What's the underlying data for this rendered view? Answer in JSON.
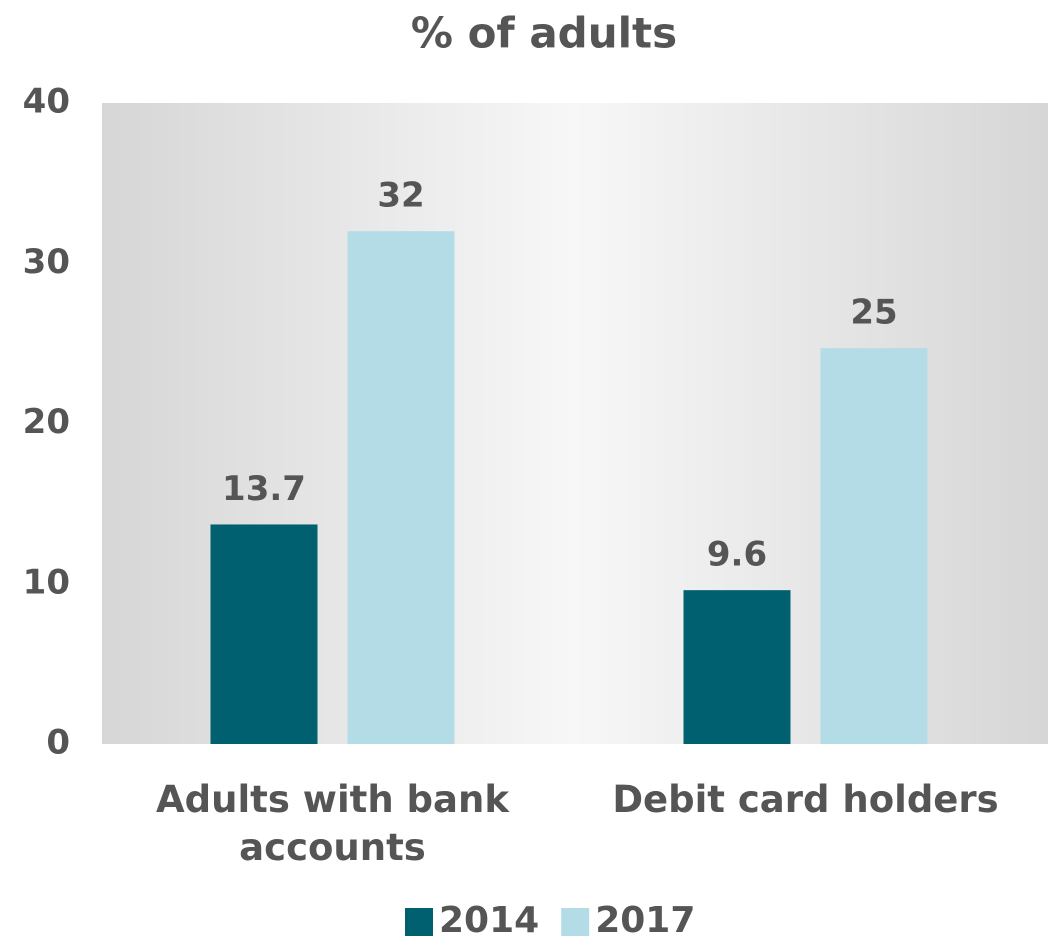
{
  "chart_data": {
    "type": "bar",
    "title": "% of adults",
    "categories": [
      "Adults with bank accounts",
      "Debit card holders"
    ],
    "series": [
      {
        "name": "2014",
        "color": "#00606f",
        "values": [
          13.7,
          9.6
        ],
        "value_labels": [
          "13.7",
          "9.6"
        ]
      },
      {
        "name": "2017",
        "color": "#b4dce6",
        "values": [
          32,
          24.7
        ],
        "value_labels": [
          "32",
          "25"
        ]
      }
    ],
    "ylim": [
      0,
      40
    ],
    "yticks": [
      0,
      10,
      20,
      30,
      40
    ],
    "grid": false,
    "legend": "bottom"
  }
}
